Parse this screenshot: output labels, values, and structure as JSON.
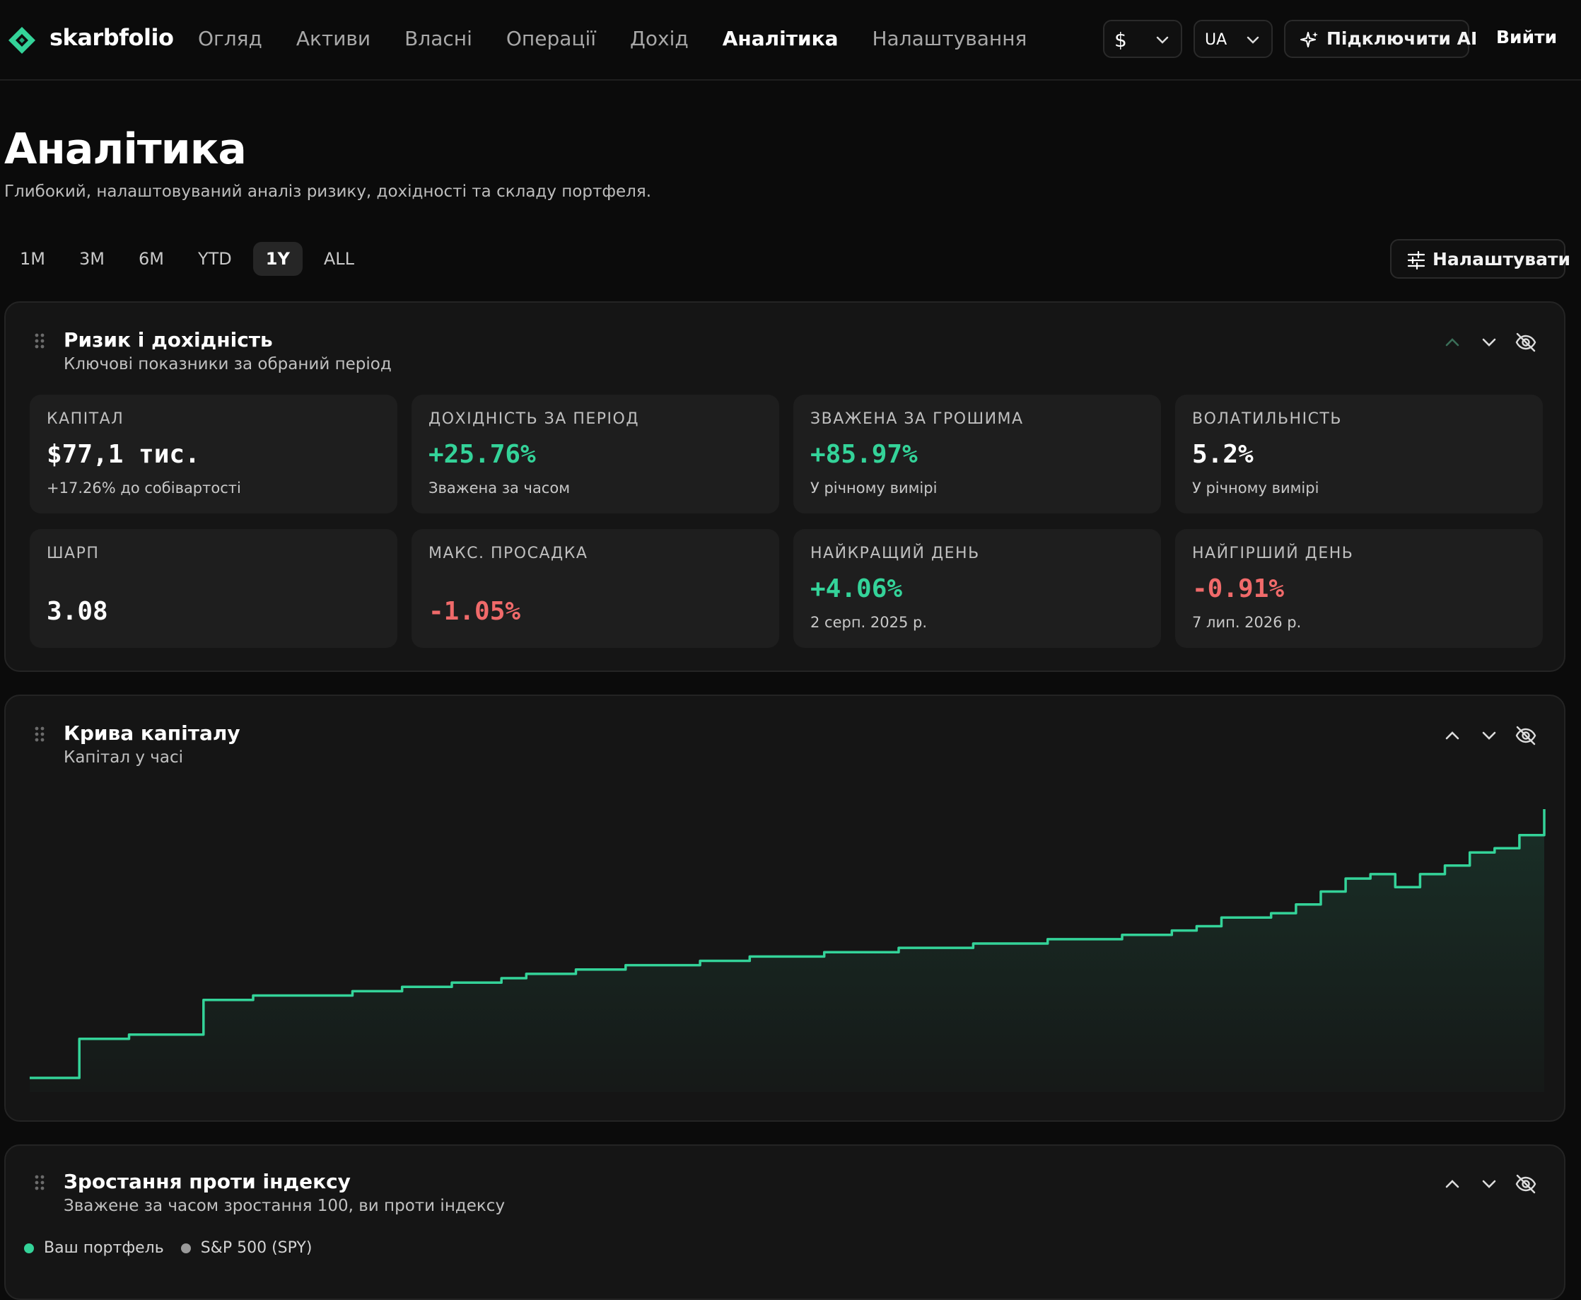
{
  "app": {
    "brand": "skarbfolio",
    "nav": [
      "Огляд",
      "Активи",
      "Власні",
      "Операції",
      "Дохід",
      "Аналітика",
      "Налаштування"
    ],
    "nav_active": "Аналітика",
    "currency": "$",
    "language": "UA",
    "ai_button": "Підключити AI",
    "logout": "Вийти",
    "accent_color": "#34d399",
    "negative_color": "#f06a6a"
  },
  "page": {
    "title": "Аналітика",
    "subtitle": "Глибокий, налаштовуваний аналіз ризику, дохідності та складу портфеля.",
    "periods": [
      "1M",
      "3M",
      "6M",
      "YTD",
      "1Y",
      "ALL"
    ],
    "active_period": "1Y",
    "customize_label": "Налаштувати"
  },
  "risk": {
    "title": "Ризик і дохідність",
    "subtitle": "Ключові показники за обраний період",
    "metrics": [
      {
        "label": "КАПІТАЛ",
        "value": "$77,1 тис.",
        "note": "+17.26% до собівартості",
        "tone": "white"
      },
      {
        "label": "ДОХІДНІСТЬ ЗА ПЕРІОД",
        "value": "+25.76%",
        "note": "Зважена за часом",
        "tone": "green"
      },
      {
        "label": "ЗВАЖЕНА ЗА ГРОШИМА",
        "value": "+85.97%",
        "note": "У річному вимірі",
        "tone": "green"
      },
      {
        "label": "ВОЛАТИЛЬНІСТЬ",
        "value": "5.2%",
        "note": "У річному вимірі",
        "tone": "white"
      },
      {
        "label": "ШАРП",
        "value": "3.08",
        "note": "",
        "tone": "white"
      },
      {
        "label": "МАКС. ПРОСАДКА",
        "value": "-1.05%",
        "note": "",
        "tone": "red"
      },
      {
        "label": "НАЙКРАЩИЙ ДЕНЬ",
        "value": "+4.06%",
        "note": "2 серп. 2025 р.",
        "tone": "green"
      },
      {
        "label": "НАЙГІРШИЙ ДЕНЬ",
        "value": "-0.91%",
        "note": "7 лип. 2026 р.",
        "tone": "red"
      }
    ]
  },
  "equity": {
    "title": "Крива капіталу",
    "subtitle": "Капітал у часі"
  },
  "growth": {
    "title": "Зростання проти індексу",
    "subtitle": "Зважене за часом зростання 100, ви проти індексу",
    "legend": [
      {
        "name": "Ваш портфель",
        "color": "#34d399"
      },
      {
        "name": "S&P 500 (SPY)",
        "color": "#9a9a9a"
      }
    ]
  },
  "chart_data": {
    "type": "area",
    "title": "Крива капіталу",
    "xlabel": "",
    "ylabel": "",
    "series": [
      {
        "values": [
          0.0,
          0.0,
          0.09,
          0.09,
          0.1,
          0.1,
          0.1,
          0.18,
          0.18,
          0.19,
          0.19,
          0.19,
          0.19,
          0.2,
          0.2,
          0.21,
          0.21,
          0.22,
          0.22,
          0.23,
          0.24,
          0.24,
          0.25,
          0.25,
          0.26,
          0.26,
          0.26,
          0.27,
          0.27,
          0.28,
          0.28,
          0.28,
          0.29,
          0.29,
          0.29,
          0.3,
          0.3,
          0.3,
          0.31,
          0.31,
          0.31,
          0.32,
          0.32,
          0.32,
          0.33,
          0.33,
          0.34,
          0.35,
          0.37,
          0.37,
          0.38,
          0.4,
          0.43,
          0.46,
          0.47,
          0.44,
          0.47,
          0.49,
          0.52,
          0.53,
          0.56,
          0.62
        ]
      }
    ]
  }
}
